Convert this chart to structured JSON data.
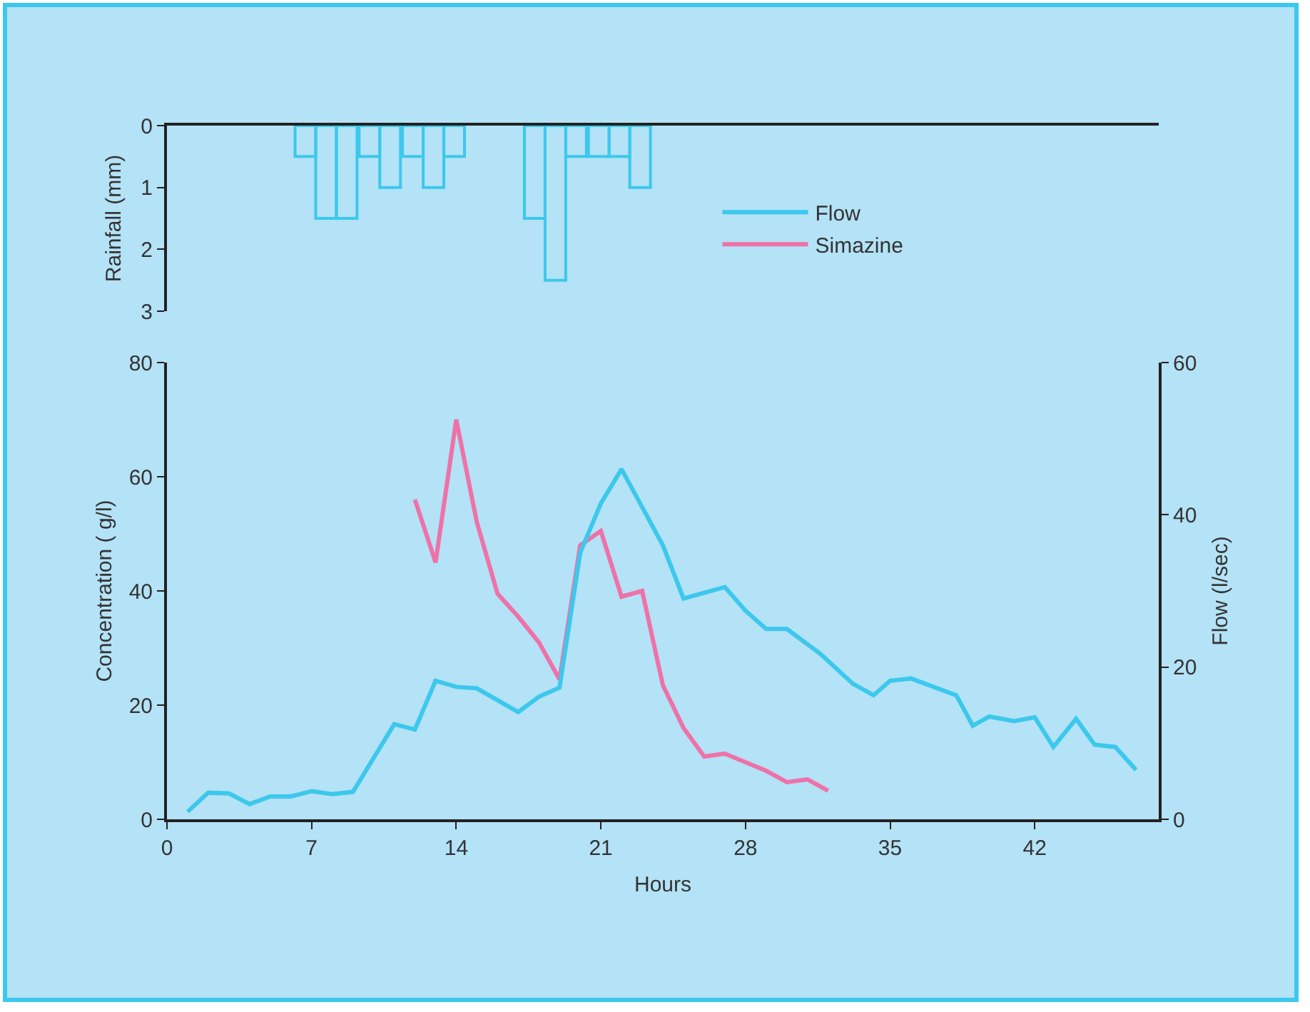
{
  "chart_data": [
    {
      "type": "bar",
      "ylabel": "Rainfall (mm)",
      "x": [
        6.7,
        7.7,
        8.7,
        9.8,
        10.8,
        11.9,
        12.9,
        13.9,
        17.8,
        18.8,
        19.8,
        20.9,
        21.9,
        22.9
      ],
      "values": [
        0.5,
        1.5,
        1.5,
        0.5,
        1,
        0.5,
        1,
        0.5,
        1.5,
        2.5,
        0.5,
        0.5,
        0.5,
        1
      ],
      "color": "#3cc8ec",
      "xlim": [
        0,
        48
      ],
      "ylim": [
        3,
        0
      ],
      "yticks": [
        0,
        1,
        2,
        3
      ],
      "tick_labels": "y",
      "grid": false
    },
    {
      "type": "line",
      "xlabel": "Hours",
      "ylabel": "Concentration ( g/l)",
      "y2label": "Flow (l/sec)",
      "series": [
        {
          "name": "Flow",
          "color": "#3cc8ec",
          "axis": "y2",
          "x": [
            1,
            2,
            3,
            4,
            5,
            6,
            7,
            8,
            9,
            11,
            12,
            13,
            14,
            15,
            17,
            18,
            19,
            20,
            21,
            22,
            23,
            24,
            25,
            27,
            28,
            29,
            30,
            31.6,
            33.2,
            34.2,
            35,
            36,
            38.2,
            39,
            39.8,
            41,
            42,
            42.9,
            44,
            44.9,
            45.9,
            46.9
          ],
          "values": [
            1,
            3.5,
            3.4,
            2,
            3,
            3,
            3.7,
            3.3,
            3.6,
            12.5,
            11.8,
            18.2,
            17.4,
            17.2,
            14.1,
            16.1,
            17.3,
            35,
            41.5,
            46,
            41,
            36,
            29,
            30.5,
            27.4,
            25,
            25,
            21.8,
            17.8,
            16.3,
            18.2,
            18.5,
            16.3,
            12.3,
            13.5,
            12.9,
            13.4,
            9.5,
            13.2,
            9.8,
            9.5,
            6.5
          ]
        },
        {
          "name": "Simazine",
          "color": "#ee72a8",
          "axis": "y",
          "x": [
            12,
            13,
            14,
            15,
            16,
            17,
            18,
            19,
            20,
            21,
            22,
            23,
            24,
            25,
            26,
            27,
            28,
            29,
            30,
            31,
            32
          ],
          "values": [
            56,
            45,
            70,
            52,
            39.5,
            35.5,
            31,
            24.5,
            48,
            50.5,
            39,
            40,
            23.5,
            16,
            11,
            11.5,
            10,
            8.5,
            6.5,
            7,
            5
          ]
        }
      ],
      "xlim": [
        0,
        48
      ],
      "xticks": [
        0,
        7,
        14,
        21,
        28,
        35,
        42
      ],
      "ylim": [
        0,
        80
      ],
      "yticks": [
        0,
        20,
        40,
        60,
        80
      ],
      "y2lim": [
        0,
        60
      ],
      "y2ticks": [
        0,
        20,
        40,
        60
      ],
      "legend": "top right",
      "grid": false,
      "line_style": "solid",
      "marker": "none"
    }
  ]
}
